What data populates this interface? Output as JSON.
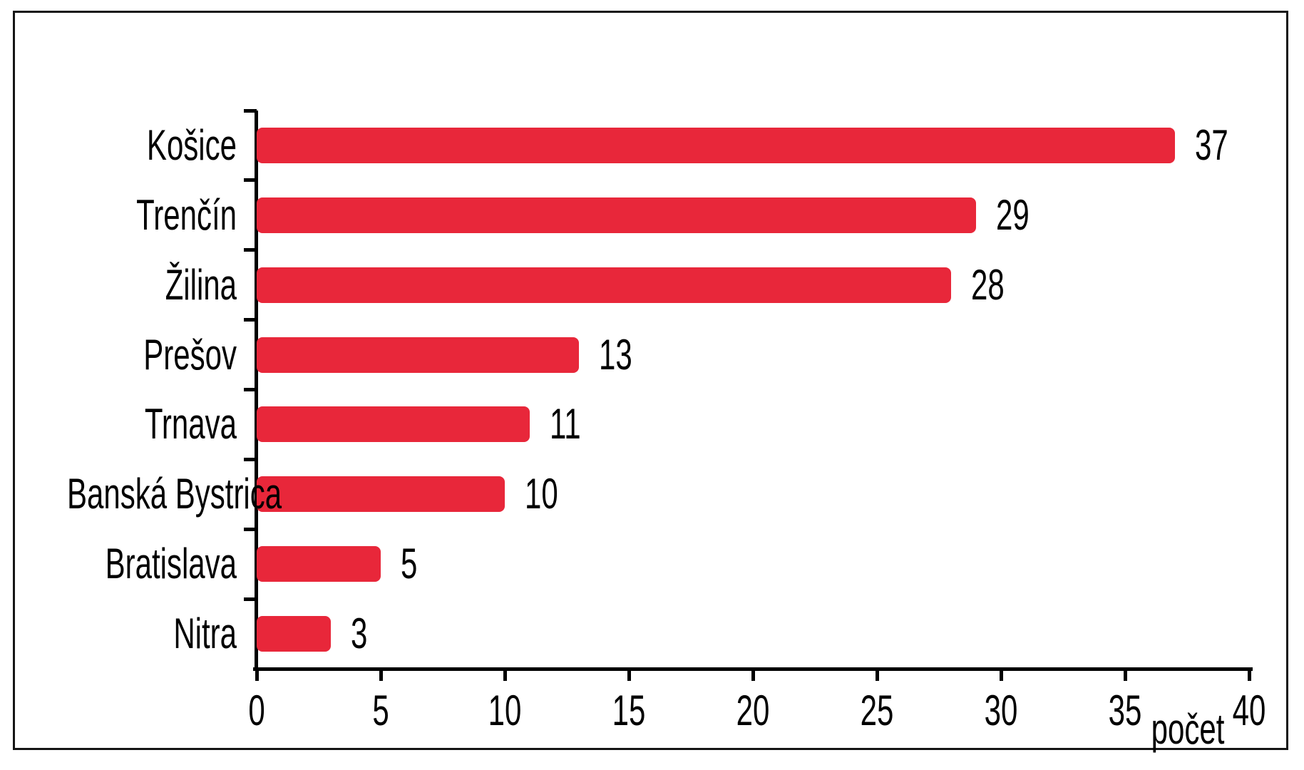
{
  "chart_data": {
    "type": "bar",
    "orientation": "horizontal",
    "title": "",
    "categories": [
      "Košice",
      "Trenčín",
      "Žilina",
      "Prešov",
      "Trnava",
      "Banská Bystrica",
      "Bratislava",
      "Nitra"
    ],
    "values": [
      37,
      29,
      28,
      13,
      11,
      10,
      5,
      3
    ],
    "value_labels": [
      "37",
      "29",
      "28",
      "13",
      "11",
      "10",
      "5",
      "3"
    ],
    "xlabel": "počet",
    "ylabel": "",
    "xlim": [
      0,
      40
    ],
    "x_ticks": [
      0,
      5,
      10,
      15,
      20,
      25,
      30,
      35,
      40
    ],
    "x_tick_labels": [
      "0",
      "5",
      "10",
      "15",
      "20",
      "25",
      "30",
      "35",
      "40"
    ],
    "grid": false,
    "legend": "none",
    "bar_color": "#E8273A",
    "axis_color": "#000000",
    "text_color": "#000000",
    "frame_color": "#151515",
    "background_color": "#ffffff"
  }
}
